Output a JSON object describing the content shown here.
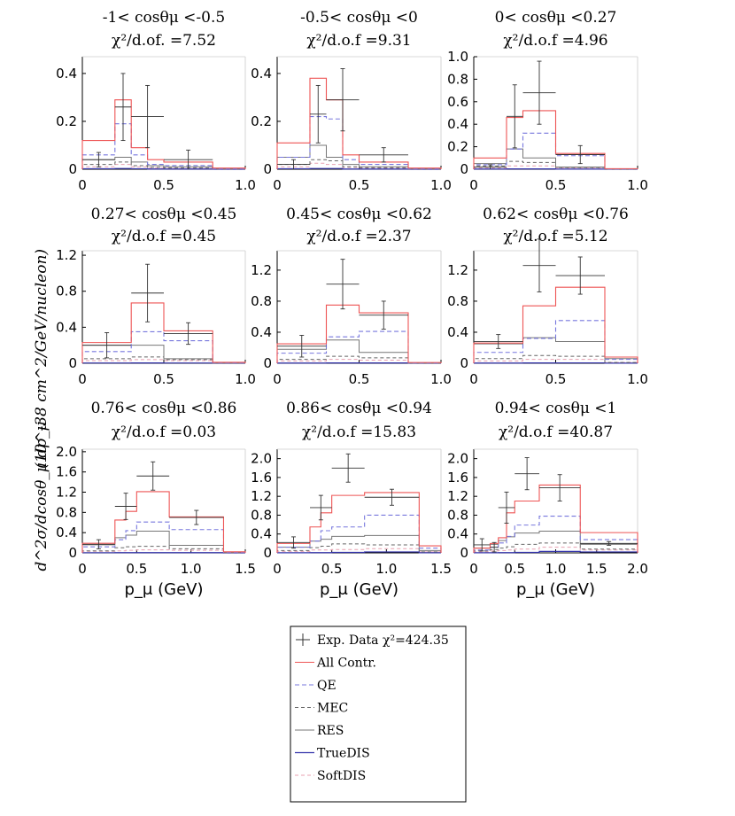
{
  "colors": {
    "all": "#ee5555",
    "qe": "#7777dd",
    "mec": "#666666",
    "res": "#777777",
    "truedis": "#3333aa",
    "softdis": "#e8a0b0",
    "data": "#333333"
  },
  "y_axis_label": "(10^-38 cm^2/GeV/nucleon)",
  "y_axis_label_2": "d^2σ/dcosθ_μ dp_μ",
  "x_axis_label": "p_μ (GeV)",
  "legend": [
    {
      "key": "data",
      "label": "Exp. Data χ²=424.35"
    },
    {
      "key": "all",
      "label": "All Contr."
    },
    {
      "key": "qe",
      "label": "QE"
    },
    {
      "key": "mec",
      "label": "MEC"
    },
    {
      "key": "res",
      "label": "RES"
    },
    {
      "key": "truedis",
      "label": "TrueDIS"
    },
    {
      "key": "softdis",
      "label": "SoftDIS"
    }
  ],
  "chart_data": [
    {
      "type": "bar",
      "title": "-1< cosθμ <-0.5",
      "subtitle": "χ²/d.of. =7.52",
      "xlim": [
        0,
        1.0
      ],
      "ylim": [
        0,
        0.47
      ],
      "xticks": [
        0,
        0.5,
        1.0
      ],
      "xticklabels": [
        "0",
        "0.5",
        "1.0"
      ],
      "yticks": [
        0,
        0.2,
        0.4
      ],
      "yticklabels": [
        "0",
        "0.2",
        "0.4"
      ],
      "edges": [
        0,
        0.2,
        0.3,
        0.4,
        0.5,
        0.8,
        1.0
      ],
      "series": {
        "all": [
          0.12,
          0.29,
          0.09,
          0.04,
          0.03,
          0.005
        ],
        "qe": [
          0.06,
          0.19,
          0.06,
          0.02,
          0.015,
          0.002
        ],
        "mec": [
          0.02,
          0.03,
          0.015,
          0.008,
          0.005,
          0.001
        ],
        "res": [
          0.04,
          0.05,
          0.03,
          0.015,
          0.01,
          0.002
        ],
        "truedis": [
          0.002,
          0.003,
          0.002,
          0.001,
          0.001,
          0.0
        ],
        "softdis": [
          0.01,
          0.02,
          0.01,
          0.005,
          0.003,
          0.001
        ]
      },
      "points": [
        {
          "x": 0.1,
          "y": 0.04,
          "xerr": 0.1,
          "yerr": 0.03
        },
        {
          "x": 0.25,
          "y": 0.26,
          "xerr": 0.05,
          "yerr": 0.14
        },
        {
          "x": 0.4,
          "y": 0.22,
          "xerr": 0.1,
          "yerr": 0.13
        },
        {
          "x": 0.65,
          "y": 0.04,
          "xerr": 0.15,
          "yerr": 0.04
        }
      ]
    },
    {
      "type": "bar",
      "title": "-0.5< cosθμ <0",
      "subtitle": "χ²/d.o.f =9.31",
      "xlim": [
        0,
        1.0
      ],
      "ylim": [
        0,
        0.47
      ],
      "xticks": [
        0,
        0.5,
        1.0
      ],
      "xticklabels": [
        "0",
        "0.5",
        "1.0"
      ],
      "yticks": [
        0,
        0.2,
        0.4
      ],
      "yticklabels": [
        "0",
        "0.2",
        "0.4"
      ],
      "edges": [
        0,
        0.2,
        0.3,
        0.4,
        0.5,
        0.8,
        1.0
      ],
      "series": {
        "all": [
          0.11,
          0.38,
          0.29,
          0.06,
          0.03,
          0.005
        ],
        "qe": [
          0.05,
          0.22,
          0.21,
          0.04,
          0.02,
          0.002
        ],
        "mec": [
          0.02,
          0.04,
          0.035,
          0.01,
          0.007,
          0.001
        ],
        "res": [
          0.05,
          0.1,
          0.05,
          0.02,
          0.01,
          0.002
        ],
        "truedis": [
          0.002,
          0.003,
          0.003,
          0.001,
          0.001,
          0.0
        ],
        "softdis": [
          0.01,
          0.025,
          0.02,
          0.008,
          0.004,
          0.001
        ]
      },
      "points": [
        {
          "x": 0.1,
          "y": 0.02,
          "xerr": 0.1,
          "yerr": 0.02
        },
        {
          "x": 0.25,
          "y": 0.23,
          "xerr": 0.05,
          "yerr": 0.12
        },
        {
          "x": 0.4,
          "y": 0.29,
          "xerr": 0.1,
          "yerr": 0.13
        },
        {
          "x": 0.65,
          "y": 0.06,
          "xerr": 0.15,
          "yerr": 0.03
        }
      ]
    },
    {
      "type": "bar",
      "title": "0< cosθμ <0.27",
      "subtitle": "χ²/d.o.f =4.96",
      "xlim": [
        0,
        1.0
      ],
      "ylim": [
        0,
        1.0
      ],
      "xticks": [
        0,
        0.5,
        1.0
      ],
      "xticklabels": [
        "0",
        "0.5",
        "1.0"
      ],
      "yticks": [
        0,
        0.2,
        0.4,
        0.6,
        0.8,
        1.0
      ],
      "yticklabels": [
        "0",
        "0.2",
        "0.4",
        "0.6",
        "0.8",
        "1.0"
      ],
      "edges": [
        0,
        0.2,
        0.3,
        0.5,
        0.8,
        1.0
      ],
      "series": {
        "all": [
          0.1,
          0.46,
          0.52,
          0.14,
          0.005
        ],
        "qe": [
          0.04,
          0.18,
          0.32,
          0.12,
          0.002
        ],
        "mec": [
          0.03,
          0.07,
          0.06,
          0.015,
          0.001
        ],
        "res": [
          0.05,
          0.18,
          0.1,
          0.02,
          0.002
        ],
        "truedis": [
          0.002,
          0.003,
          0.003,
          0.001,
          0.0
        ],
        "softdis": [
          0.01,
          0.03,
          0.03,
          0.01,
          0.001
        ]
      },
      "points": [
        {
          "x": 0.1,
          "y": 0.02,
          "xerr": 0.1,
          "yerr": 0.02
        },
        {
          "x": 0.25,
          "y": 0.47,
          "xerr": 0.05,
          "yerr": 0.28
        },
        {
          "x": 0.4,
          "y": 0.68,
          "xerr": 0.1,
          "yerr": 0.28
        },
        {
          "x": 0.65,
          "y": 0.13,
          "xerr": 0.15,
          "yerr": 0.08
        }
      ]
    },
    {
      "type": "bar",
      "title": "0.27< cosθμ <0.45",
      "subtitle": "χ²/d.o.f =0.45",
      "xlim": [
        0,
        1.0
      ],
      "ylim": [
        0,
        1.25
      ],
      "xticks": [
        0,
        0.5,
        1.0
      ],
      "xticklabels": [
        "0",
        "0.5",
        "1.0"
      ],
      "yticks": [
        0,
        0.4,
        0.8,
        1.2
      ],
      "yticklabels": [
        "0",
        "0.4",
        "0.8",
        "1.2"
      ],
      "edges": [
        0,
        0.3,
        0.5,
        0.8,
        1.0
      ],
      "series": {
        "all": [
          0.23,
          0.67,
          0.36,
          0.01
        ],
        "qe": [
          0.13,
          0.35,
          0.25,
          0.005
        ],
        "mec": [
          0.05,
          0.07,
          0.04,
          0.002
        ],
        "res": [
          0.2,
          0.2,
          0.05,
          0.003
        ],
        "truedis": [
          0.003,
          0.004,
          0.003,
          0.0
        ],
        "softdis": [
          0.03,
          0.04,
          0.03,
          0.002
        ]
      },
      "points": [
        {
          "x": 0.15,
          "y": 0.2,
          "xerr": 0.15,
          "yerr": 0.14
        },
        {
          "x": 0.4,
          "y": 0.78,
          "xerr": 0.1,
          "yerr": 0.32
        },
        {
          "x": 0.65,
          "y": 0.33,
          "xerr": 0.15,
          "yerr": 0.12
        }
      ]
    },
    {
      "type": "bar",
      "title": "0.45< cosθμ <0.62",
      "subtitle": "χ²/d.o.f =2.37",
      "xlim": [
        0,
        1.0
      ],
      "ylim": [
        0,
        1.45
      ],
      "xticks": [
        0,
        0.5,
        1.0
      ],
      "xticklabels": [
        "0",
        "0.5",
        "1.0"
      ],
      "yticks": [
        0,
        0.4,
        0.8,
        1.2
      ],
      "yticklabels": [
        "0",
        "0.4",
        "0.8",
        "1.2"
      ],
      "edges": [
        0,
        0.3,
        0.5,
        0.8,
        1.0
      ],
      "series": {
        "all": [
          0.25,
          0.75,
          0.65,
          0.01
        ],
        "qe": [
          0.13,
          0.34,
          0.41,
          0.005
        ],
        "mec": [
          0.05,
          0.09,
          0.07,
          0.002
        ],
        "res": [
          0.18,
          0.3,
          0.14,
          0.003
        ],
        "truedis": [
          0.003,
          0.004,
          0.004,
          0.0
        ],
        "softdis": [
          0.03,
          0.05,
          0.04,
          0.002
        ]
      },
      "points": [
        {
          "x": 0.15,
          "y": 0.22,
          "xerr": 0.15,
          "yerr": 0.14
        },
        {
          "x": 0.4,
          "y": 1.02,
          "xerr": 0.1,
          "yerr": 0.32
        },
        {
          "x": 0.65,
          "y": 0.62,
          "xerr": 0.15,
          "yerr": 0.18
        }
      ]
    },
    {
      "type": "bar",
      "title": "0.62< cosθμ <0.76",
      "subtitle": "χ²/d.o.f =5.12",
      "xlim": [
        0,
        1.0
      ],
      "ylim": [
        0,
        1.45
      ],
      "xticks": [
        0,
        0.5,
        1.0
      ],
      "xticklabels": [
        "0",
        "0.5",
        "1.0"
      ],
      "yticks": [
        0,
        0.4,
        0.8,
        1.2
      ],
      "yticklabels": [
        "0",
        "0.4",
        "0.8",
        "1.2"
      ],
      "edges": [
        0,
        0.3,
        0.5,
        0.8,
        1.0
      ],
      "series": {
        "all": [
          0.26,
          0.74,
          0.98,
          0.08
        ],
        "qe": [
          0.14,
          0.32,
          0.55,
          0.05
        ],
        "mec": [
          0.06,
          0.1,
          0.09,
          0.01
        ],
        "res": [
          0.25,
          0.33,
          0.28,
          0.06
        ],
        "truedis": [
          0.003,
          0.004,
          0.005,
          0.001
        ],
        "softdis": [
          0.03,
          0.05,
          0.05,
          0.01
        ]
      },
      "points": [
        {
          "x": 0.15,
          "y": 0.28,
          "xerr": 0.15,
          "yerr": 0.09
        },
        {
          "x": 0.4,
          "y": 1.26,
          "xerr": 0.1,
          "yerr": 0.34
        },
        {
          "x": 0.65,
          "y": 1.13,
          "xerr": 0.15,
          "yerr": 0.24
        }
      ]
    },
    {
      "type": "bar",
      "title": "0.76< cosθμ <0.86",
      "subtitle": "χ²/d.o.f =0.03",
      "xlim": [
        0,
        1.5
      ],
      "ylim": [
        0,
        2.05
      ],
      "xticks": [
        0,
        0.5,
        1.0,
        1.5
      ],
      "xticklabels": [
        "0",
        "0.5",
        "1.0",
        "1.5"
      ],
      "yticks": [
        0,
        0.4,
        0.8,
        1.2,
        1.6,
        2.0
      ],
      "yticklabels": [
        "0",
        "0.4",
        "0.8",
        "1.2",
        "1.6",
        "2.0"
      ],
      "edges": [
        0,
        0.3,
        0.4,
        0.5,
        0.8,
        1.3,
        1.5
      ],
      "series": {
        "all": [
          0.19,
          0.65,
          0.82,
          1.21,
          0.71,
          0.02
        ],
        "qe": [
          0.12,
          0.26,
          0.44,
          0.61,
          0.46,
          0.01
        ],
        "mec": [
          0.04,
          0.1,
          0.12,
          0.13,
          0.08,
          0.005
        ],
        "res": [
          0.16,
          0.3,
          0.35,
          0.43,
          0.15,
          0.01
        ],
        "truedis": [
          0.003,
          0.004,
          0.005,
          0.005,
          0.004,
          0.0
        ],
        "softdis": [
          0.03,
          0.04,
          0.05,
          0.06,
          0.05,
          0.003
        ]
      },
      "points": [
        {
          "x": 0.15,
          "y": 0.17,
          "xerr": 0.15,
          "yerr": 0.09
        },
        {
          "x": 0.4,
          "y": 0.92,
          "xerr": 0.1,
          "yerr": 0.26
        },
        {
          "x": 0.65,
          "y": 1.52,
          "xerr": 0.15,
          "yerr": 0.28
        },
        {
          "x": 1.05,
          "y": 0.7,
          "xerr": 0.25,
          "yerr": 0.14
        }
      ]
    },
    {
      "type": "bar",
      "title": "0.86< cosθμ <0.94",
      "subtitle": "χ²/d.o.f =15.83",
      "xlim": [
        0,
        1.5
      ],
      "ylim": [
        0,
        2.2
      ],
      "xticks": [
        0,
        0.5,
        1.0,
        1.5
      ],
      "xticklabels": [
        "0",
        "0.5",
        "1.0",
        "1.5"
      ],
      "yticks": [
        0,
        0.4,
        0.8,
        1.2,
        1.6,
        2.0
      ],
      "yticklabels": [
        "0",
        "0.4",
        "0.8",
        "1.2",
        "1.6",
        "2.0"
      ],
      "edges": [
        0,
        0.3,
        0.4,
        0.5,
        0.8,
        1.3,
        1.5
      ],
      "series": {
        "all": [
          0.2,
          0.55,
          0.85,
          1.22,
          1.28,
          0.15
        ],
        "qe": [
          0.12,
          0.25,
          0.47,
          0.55,
          0.8,
          0.1
        ],
        "mec": [
          0.05,
          0.11,
          0.14,
          0.19,
          0.17,
          0.02
        ],
        "res": [
          0.12,
          0.25,
          0.29,
          0.35,
          0.37,
          0.05
        ],
        "truedis": [
          0.003,
          0.004,
          0.005,
          0.01,
          0.02,
          0.003
        ],
        "softdis": [
          0.03,
          0.06,
          0.06,
          0.07,
          0.09,
          0.02
        ]
      },
      "points": [
        {
          "x": 0.15,
          "y": 0.22,
          "xerr": 0.15,
          "yerr": 0.12
        },
        {
          "x": 0.4,
          "y": 0.96,
          "xerr": 0.1,
          "yerr": 0.26
        },
        {
          "x": 0.65,
          "y": 1.8,
          "xerr": 0.15,
          "yerr": 0.3
        },
        {
          "x": 1.05,
          "y": 1.18,
          "xerr": 0.25,
          "yerr": 0.17
        }
      ]
    },
    {
      "type": "bar",
      "title": "0.94< cosθμ <1",
      "subtitle": "χ²/d.o.f =40.87",
      "xlim": [
        0,
        2.0
      ],
      "ylim": [
        0,
        2.2
      ],
      "xticks": [
        0,
        0.5,
        1.0,
        1.5,
        2.0
      ],
      "xticklabels": [
        "0",
        "0.5",
        "1.0",
        "1.5",
        "2.0"
      ],
      "yticks": [
        0,
        0.4,
        0.8,
        1.2,
        1.6,
        2.0
      ],
      "yticklabels": [
        "0",
        "0.4",
        "0.8",
        "1.2",
        "1.6",
        "2.0"
      ],
      "edges": [
        0,
        0.2,
        0.3,
        0.4,
        0.5,
        0.8,
        1.3,
        2.0
      ],
      "series": {
        "all": [
          0.1,
          0.2,
          0.32,
          0.85,
          1.1,
          1.44,
          0.43
        ],
        "qe": [
          0.06,
          0.12,
          0.21,
          0.35,
          0.59,
          0.78,
          0.28
        ],
        "mec": [
          0.04,
          0.07,
          0.1,
          0.13,
          0.18,
          0.21,
          0.08
        ],
        "res": [
          0.1,
          0.18,
          0.26,
          0.34,
          0.42,
          0.46,
          0.18
        ],
        "truedis": [
          0.002,
          0.003,
          0.004,
          0.005,
          0.01,
          0.03,
          0.02
        ],
        "softdis": [
          0.02,
          0.04,
          0.05,
          0.06,
          0.08,
          0.12,
          0.06
        ]
      },
      "points": [
        {
          "x": 0.1,
          "y": 0.17,
          "xerr": 0.1,
          "yerr": 0.13
        },
        {
          "x": 0.25,
          "y": 0.12,
          "xerr": 0.05,
          "yerr": 0.1
        },
        {
          "x": 0.4,
          "y": 0.96,
          "xerr": 0.1,
          "yerr": 0.33
        },
        {
          "x": 0.65,
          "y": 1.68,
          "xerr": 0.15,
          "yerr": 0.34
        },
        {
          "x": 1.05,
          "y": 1.38,
          "xerr": 0.25,
          "yerr": 0.28
        },
        {
          "x": 1.65,
          "y": 0.2,
          "xerr": 0.35,
          "yerr": 0.04
        }
      ]
    }
  ]
}
